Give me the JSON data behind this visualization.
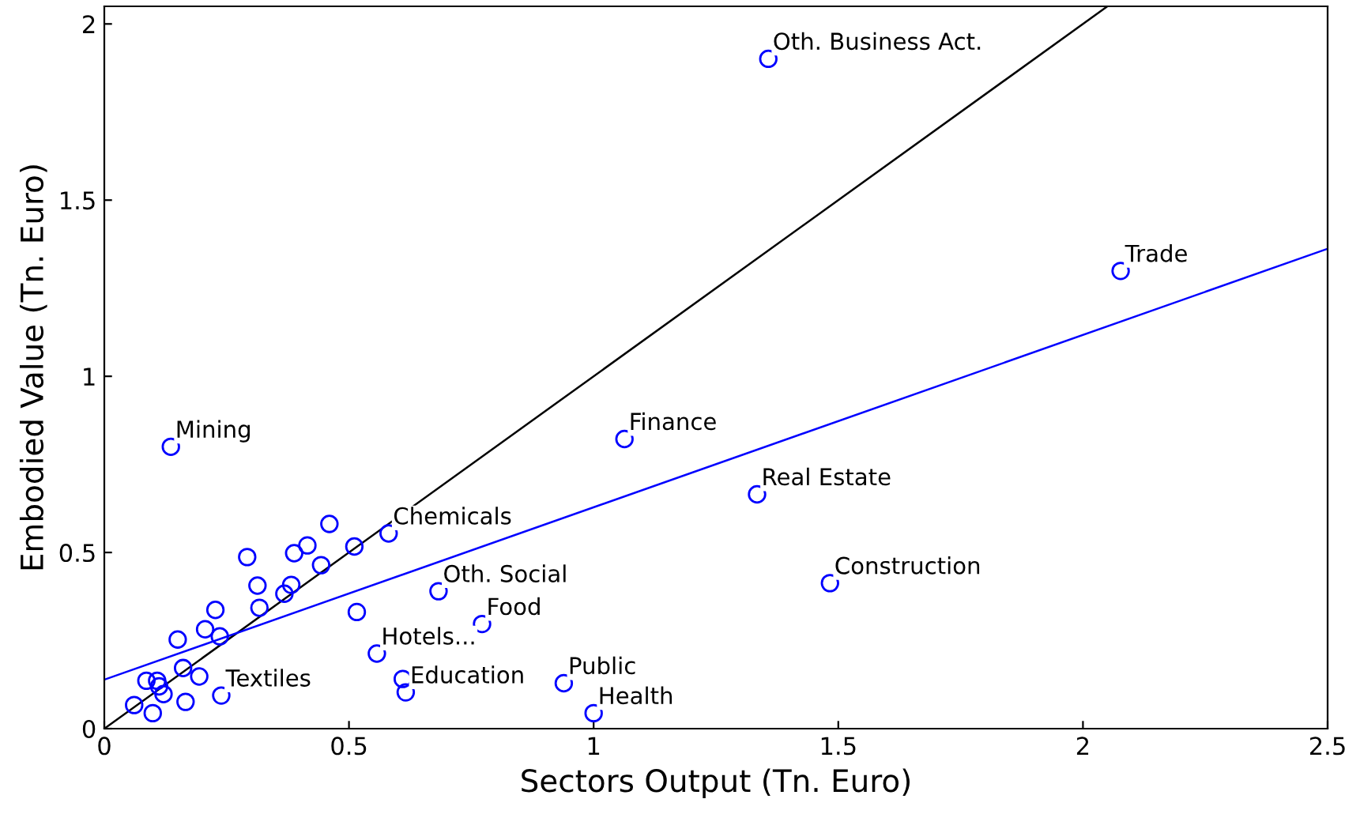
{
  "chart_data": {
    "type": "scatter",
    "xlabel": "Sectors Output (Tn. Euro)",
    "ylabel": "Embodied Value (Tn. Euro)",
    "xlim": [
      0,
      2.5
    ],
    "ylim": [
      0,
      2.05
    ],
    "xticks": [
      0,
      0.5,
      1,
      1.5,
      2,
      2.5
    ],
    "yticks": [
      0,
      0.5,
      1,
      1.5,
      2
    ],
    "grid": false,
    "marker": "circle",
    "series": [
      {
        "color": "#0000ff",
        "x": [
          0.061,
          0.099,
          0.086,
          0.108,
          0.112,
          0.121,
          0.166,
          0.161,
          0.194,
          0.239,
          0.15,
          0.206,
          0.236,
          0.227,
          0.292,
          0.313,
          0.317,
          0.368,
          0.382,
          0.388,
          0.415,
          0.443,
          0.46,
          0.511,
          0.516,
          0.581,
          0.557,
          0.61,
          0.616,
          0.683,
          0.772,
          0.939,
          1.0,
          0.136,
          1.063,
          1.334,
          1.483,
          2.077,
          1.357
        ],
        "values": [
          0.067,
          0.044,
          0.136,
          0.136,
          0.12,
          0.098,
          0.076,
          0.172,
          0.148,
          0.094,
          0.253,
          0.282,
          0.262,
          0.337,
          0.487,
          0.406,
          0.343,
          0.383,
          0.408,
          0.498,
          0.52,
          0.464,
          0.581,
          0.517,
          0.331,
          0.554,
          0.213,
          0.141,
          0.103,
          0.39,
          0.297,
          0.129,
          0.044,
          0.8,
          0.822,
          0.665,
          0.413,
          1.299,
          1.901
        ]
      },
      {
        "type": "line",
        "color": "#000000",
        "x": [
          0,
          2.05
        ],
        "values": [
          0,
          2.05
        ],
        "marker": "none"
      },
      {
        "type": "line",
        "color": "#0000ff",
        "x": [
          0,
          2.5
        ],
        "values": [
          0.139,
          1.362
        ],
        "marker": "none"
      }
    ],
    "annotations": [
      {
        "text": "Textiles",
        "x": 0.239,
        "y": 0.094
      },
      {
        "text": "Chemicals",
        "x": 0.581,
        "y": 0.554
      },
      {
        "text": "Hotels...",
        "x": 0.557,
        "y": 0.213
      },
      {
        "text": "Education",
        "x": 0.616,
        "y": 0.103
      },
      {
        "text": "Oth. Social",
        "x": 0.683,
        "y": 0.39
      },
      {
        "text": "Food",
        "x": 0.772,
        "y": 0.297
      },
      {
        "text": "Public",
        "x": 0.939,
        "y": 0.129
      },
      {
        "text": "Health",
        "x": 1.0,
        "y": 0.044
      },
      {
        "text": "Mining",
        "x": 0.136,
        "y": 0.8
      },
      {
        "text": "Finance",
        "x": 1.063,
        "y": 0.822
      },
      {
        "text": "Real Estate",
        "x": 1.334,
        "y": 0.665
      },
      {
        "text": "Construction",
        "x": 1.483,
        "y": 0.413
      },
      {
        "text": "Trade",
        "x": 2.077,
        "y": 1.299
      },
      {
        "text": "Oth. Business Act.",
        "x": 1.357,
        "y": 1.901
      }
    ]
  }
}
